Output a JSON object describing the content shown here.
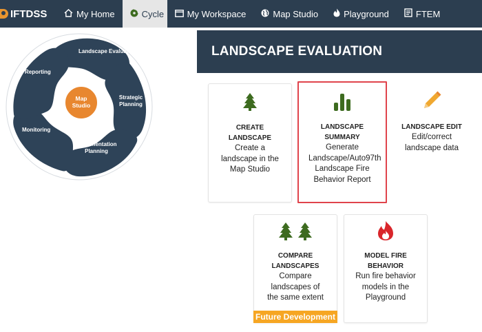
{
  "nav": {
    "brand": "IFTDSS",
    "items": [
      {
        "label": "My Home",
        "icon": "home-icon"
      },
      {
        "label": "Cycle",
        "icon": "cycle-icon",
        "active": true
      },
      {
        "label": "My Workspace",
        "icon": "window-icon"
      },
      {
        "label": "Map Studio",
        "icon": "globe-icon"
      },
      {
        "label": "Playground",
        "icon": "flame-icon"
      },
      {
        "label": "FTEM",
        "icon": "report-icon"
      }
    ]
  },
  "cycle": {
    "center": "Map Studio",
    "segments": [
      "Landscape Evaluation",
      "Strategic Planning",
      "Implementation Planning",
      "Monitoring",
      "Reporting"
    ]
  },
  "header": {
    "title": "LANDSCAPE EVALUATION"
  },
  "cards": [
    {
      "id": "create-landscape",
      "title": "CREATE LANDSCAPE",
      "desc": "Create a landscape in the Map Studio",
      "icon": "tree-icon"
    },
    {
      "id": "landscape-summary",
      "title": "LANDSCAPE SUMMARY",
      "desc": "Generate Landscape/Auto97th Landscape Fire Behavior Report",
      "icon": "bar-chart-icon"
    },
    {
      "id": "landscape-edit",
      "title": "LANDSCAPE EDIT",
      "desc": "Edit/correct landscape data",
      "icon": "pencil-icon"
    },
    {
      "id": "compare-landscapes",
      "title": "COMPARE LANDSCAPES",
      "desc": "Compare landscapes of the same extent",
      "icon": "two-trees-icon",
      "badge": "Future Development"
    },
    {
      "id": "model-fire-behavior",
      "title": "MODEL FIRE BEHAVIOR",
      "desc": "Run fire behavior models in the Playground",
      "icon": "fire-icon"
    }
  ],
  "colors": {
    "nav": "#2c3e50",
    "accent_orange": "#e8952f",
    "tree_green": "#3d6b1f",
    "highlight_red": "#e0434b",
    "fire_red": "#d9262b",
    "pencil_orange": "#f0a830"
  }
}
